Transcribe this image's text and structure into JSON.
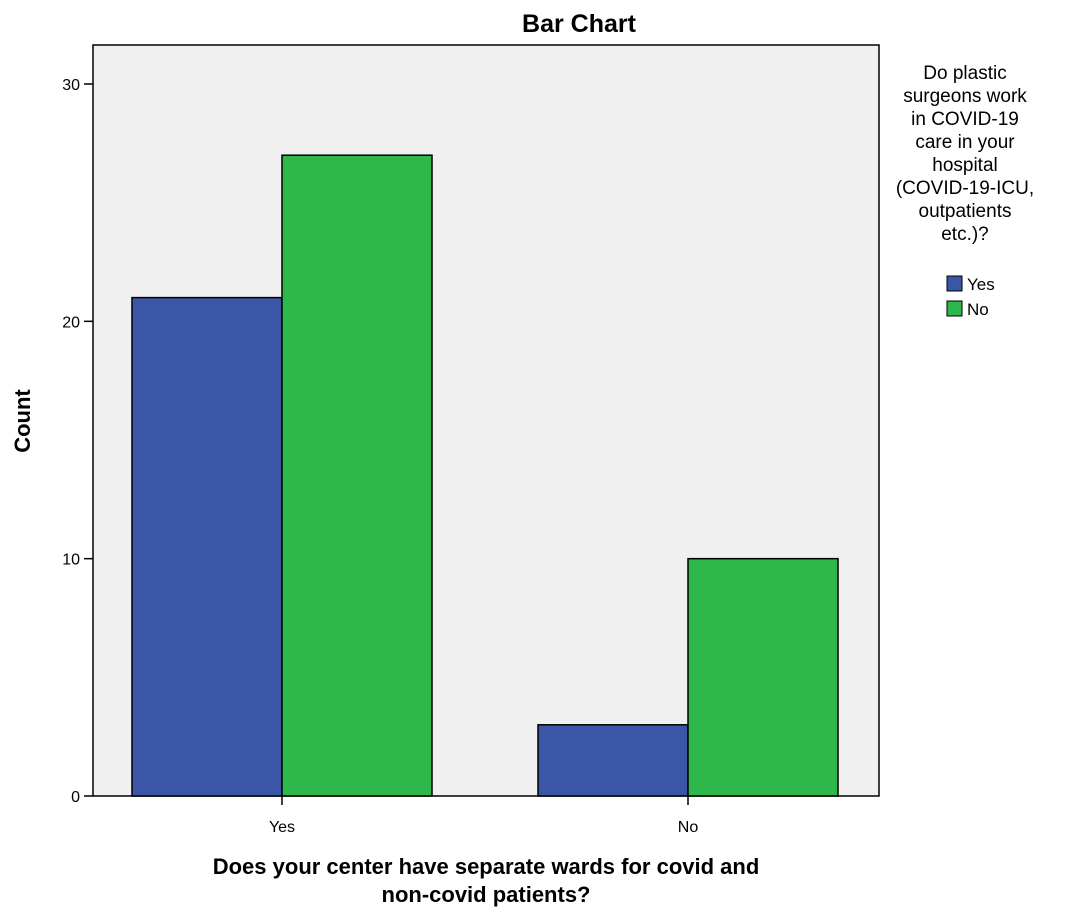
{
  "chart_data": {
    "type": "bar",
    "title": "Bar Chart",
    "xlabel_lines": [
      "Does your center have separate wards for covid and",
      "non-covid patients?"
    ],
    "ylabel": "Count",
    "categories": [
      "Yes",
      "No"
    ],
    "series": [
      {
        "name": "Yes",
        "values": [
          21,
          3
        ],
        "color": "#3b56a6"
      },
      {
        "name": "No",
        "values": [
          27,
          10
        ],
        "color": "#2eb84b"
      }
    ],
    "ylim": [
      0,
      30
    ],
    "yticks": [
      0,
      10,
      20,
      30
    ],
    "grid": false,
    "legend": {
      "placement": "top-right",
      "title_lines": [
        "Do plastic",
        "surgeons work",
        "in COVID-19",
        "care in your",
        "hospital",
        "(COVID-19-ICU,",
        "outpatients",
        "etc.)?"
      ]
    },
    "colors": {
      "plot_background": "#f0f0f0",
      "outline": "#000000"
    }
  }
}
